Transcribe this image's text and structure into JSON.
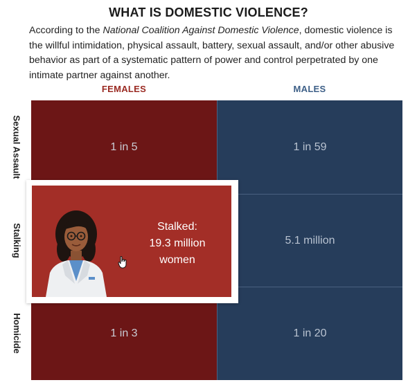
{
  "header": {
    "title": "WHAT IS DOMESTIC VIOLENCE?",
    "intro_before": "According to the ",
    "intro_source": "National Coalition Against Domestic Violence",
    "intro_after": ", domestic violence is the willful intimidation, physical assault, battery, sexual assault, and/or other abusive behavior as part of a systematic pattern of power and control perpetrated by one intimate partner against another."
  },
  "columns": {
    "female": "FEMALES",
    "male": "MALES"
  },
  "rows": [
    {
      "label": "Sexual Assault",
      "female": "1 in 5",
      "male": "1 in 59"
    },
    {
      "label": "Stalking",
      "female": "",
      "male": "5.1 million"
    },
    {
      "label": "Homicide",
      "female": "1 in 3",
      "male": "1 in 20"
    }
  ],
  "popup": {
    "line1": "Stalked:",
    "line2": "19.3 million",
    "line3": "women"
  },
  "colors": {
    "female_dark": "#6c1616",
    "female_popup": "#a32e27",
    "male": "#263d5b"
  }
}
